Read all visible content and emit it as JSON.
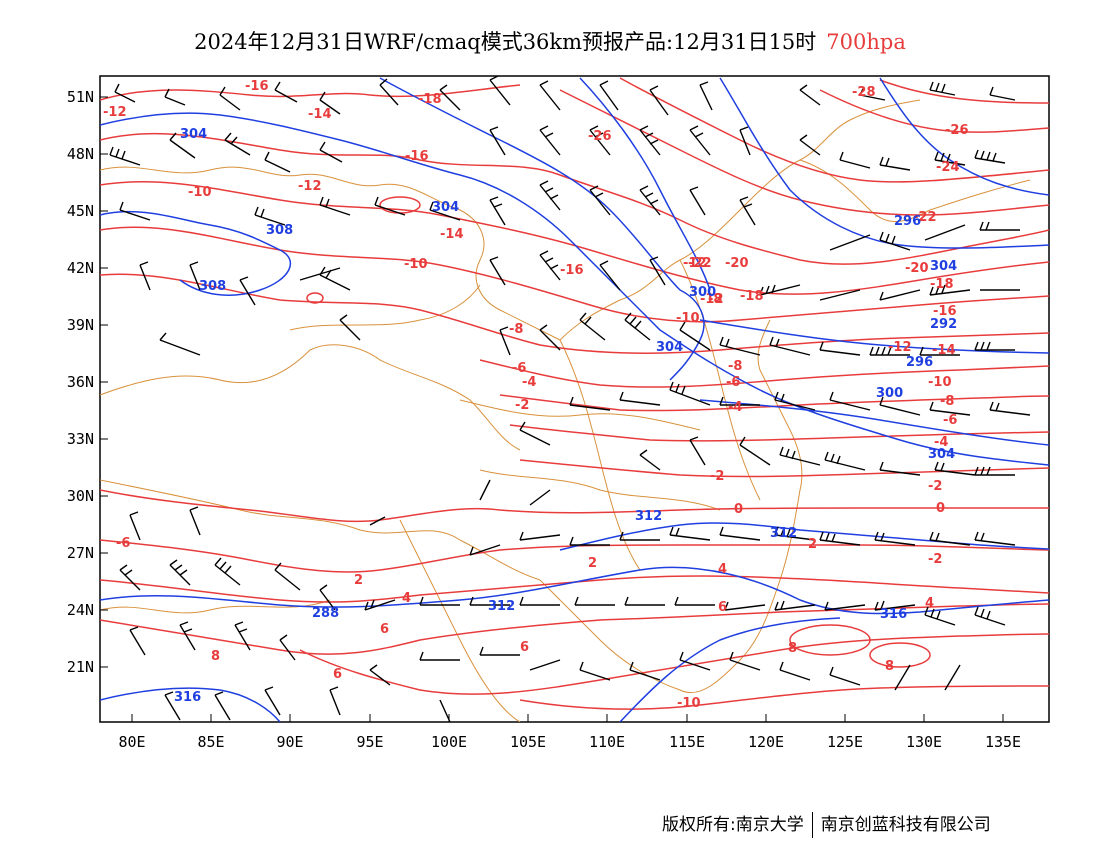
{
  "title": {
    "main": "2024年12月31日WRF/cmaq模式36km预报产品:12月31日15时",
    "level": "700hpa"
  },
  "colors": {
    "temperature": "#e83c3c",
    "geopotential": "#1f3fe0",
    "boundary": "#d9913c",
    "wind": "#000000"
  },
  "axes": {
    "lat_labels": [
      "51N",
      "48N",
      "45N",
      "42N",
      "39N",
      "36N",
      "33N",
      "30N",
      "27N",
      "24N",
      "21N"
    ],
    "lon_labels": [
      "80E",
      "85E",
      "90E",
      "95E",
      "100E",
      "105E",
      "110E",
      "115E",
      "120E",
      "125E",
      "130E",
      "135E"
    ]
  },
  "temperature_labels": [
    "-16",
    "-12",
    "-14",
    "-18",
    "-10",
    "-12",
    "-16",
    "-26",
    "-28",
    "-26",
    "-24",
    "-14",
    "-10",
    "-16",
    "-22",
    "-20",
    "-18",
    "-22",
    "-20",
    "-18",
    "-16",
    "-12",
    "-14",
    "-10",
    "-8",
    "-6",
    "-4",
    "-2",
    "-8",
    "-6",
    "-4",
    "-2",
    "-12",
    "-8",
    "-6",
    "-10",
    "-8",
    "-4",
    "-2",
    "0",
    "0",
    "2",
    "-2",
    "4",
    "6",
    "8",
    "2",
    "4",
    "6",
    "6",
    "8",
    "8",
    "6",
    "4",
    "2",
    "-6",
    "-10",
    "-12"
  ],
  "geopotential_labels": [
    "304",
    "304",
    "308",
    "308",
    "304",
    "300",
    "296",
    "304",
    "300",
    "296",
    "292",
    "304",
    "312",
    "312",
    "312",
    "316",
    "316",
    "288"
  ],
  "credit": {
    "owner": "版权所有:南京大学",
    "company": "南京创蓝科技有限公司"
  }
}
